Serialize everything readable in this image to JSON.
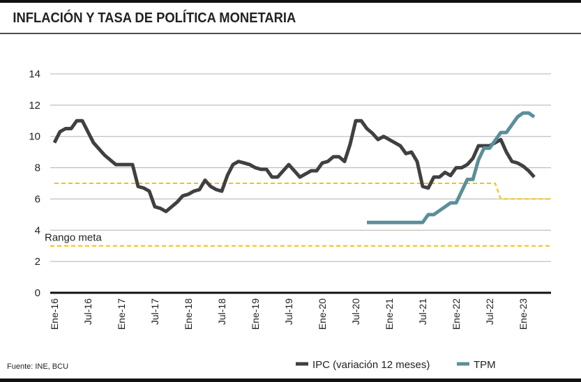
{
  "chart_data": {
    "type": "line",
    "title": "INFLACIÓN Y TASA DE POLÍTICA MONETARIA",
    "source": "Fuente: INE, BCU",
    "categories": [
      "Ene-16",
      null,
      null,
      null,
      null,
      null,
      "Jul-16",
      null,
      null,
      null,
      null,
      null,
      "Ene-17",
      null,
      null,
      null,
      null,
      null,
      "Jul-17",
      null,
      null,
      null,
      null,
      null,
      "Ene-18",
      null,
      null,
      null,
      null,
      null,
      "Jul-18",
      null,
      null,
      null,
      null,
      null,
      "Ene-19",
      null,
      null,
      null,
      null,
      null,
      "Jul-19",
      null,
      null,
      null,
      null,
      null,
      "Ene-20",
      null,
      null,
      null,
      null,
      null,
      "Jul-20",
      null,
      null,
      null,
      null,
      null,
      "Ene-21",
      null,
      null,
      null,
      null,
      null,
      "Jul-21",
      null,
      null,
      null,
      null,
      null,
      "Ene-22",
      null,
      null,
      null,
      null,
      null,
      "Jul-22",
      null,
      null,
      null,
      null,
      null,
      "Ene-23",
      null,
      null
    ],
    "series": [
      {
        "name": "IPC (variación 12 meses)",
        "color": "#404040",
        "values": [
          9.6,
          10.3,
          10.5,
          10.5,
          11.0,
          11.0,
          10.3,
          9.6,
          9.2,
          8.8,
          8.5,
          8.2,
          8.2,
          8.2,
          8.2,
          6.8,
          6.7,
          6.5,
          5.5,
          5.4,
          5.2,
          5.5,
          5.8,
          6.2,
          6.3,
          6.5,
          6.6,
          7.2,
          6.8,
          6.6,
          6.5,
          7.5,
          8.2,
          8.4,
          8.3,
          8.2,
          8.0,
          7.9,
          7.9,
          7.4,
          7.4,
          7.8,
          8.2,
          7.8,
          7.4,
          7.6,
          7.8,
          7.8,
          8.3,
          8.4,
          8.7,
          8.7,
          8.4,
          9.5,
          11.0,
          11.0,
          10.5,
          10.2,
          9.8,
          10.0,
          9.8,
          9.6,
          9.4,
          8.9,
          9.0,
          8.4,
          6.8,
          6.7,
          7.4,
          7.4,
          7.7,
          7.5,
          8.0,
          8.0,
          8.2,
          8.6,
          9.4,
          9.4,
          9.4,
          9.6,
          9.8,
          9.0,
          8.4,
          8.3,
          8.1,
          7.8,
          7.4
        ]
      },
      {
        "name": "TPM",
        "color": "#5a8f9a",
        "values": [
          null,
          null,
          null,
          null,
          null,
          null,
          null,
          null,
          null,
          null,
          null,
          null,
          null,
          null,
          null,
          null,
          null,
          null,
          null,
          null,
          null,
          null,
          null,
          null,
          null,
          null,
          null,
          null,
          null,
          null,
          null,
          null,
          null,
          null,
          null,
          null,
          null,
          null,
          null,
          null,
          null,
          null,
          null,
          null,
          null,
          null,
          null,
          null,
          null,
          null,
          null,
          null,
          null,
          null,
          null,
          null,
          4.5,
          4.5,
          4.5,
          4.5,
          4.5,
          4.5,
          4.5,
          4.5,
          4.5,
          4.5,
          4.5,
          5.0,
          5.0,
          5.25,
          5.5,
          5.75,
          5.75,
          6.5,
          7.25,
          7.25,
          8.5,
          9.25,
          9.25,
          9.75,
          10.25,
          10.25,
          10.75,
          11.25,
          11.5,
          11.5,
          11.25
        ]
      }
    ],
    "target_range": {
      "label": "Rango meta",
      "color": "#f2c400",
      "lower": 3,
      "upper": [
        7,
        7,
        7,
        7,
        7,
        7,
        7,
        7,
        7,
        7,
        7,
        7,
        7,
        7,
        7,
        7,
        7,
        7,
        7,
        7,
        7,
        7,
        7,
        7,
        7,
        7,
        7,
        7,
        7,
        7,
        7,
        7,
        7,
        7,
        7,
        7,
        7,
        7,
        7,
        7,
        7,
        7,
        7,
        7,
        7,
        7,
        7,
        7,
        7,
        7,
        7,
        7,
        7,
        7,
        7,
        7,
        7,
        7,
        7,
        7,
        7,
        7,
        7,
        7,
        7,
        7,
        7,
        7,
        7,
        7,
        7,
        7,
        7,
        7,
        7,
        7,
        7,
        7,
        7,
        7,
        6,
        6,
        6,
        6,
        6,
        6,
        6
      ]
    },
    "ylim": [
      0,
      14
    ],
    "yticks": [
      0,
      2,
      4,
      6,
      8,
      10,
      12,
      14
    ],
    "grid": true
  }
}
